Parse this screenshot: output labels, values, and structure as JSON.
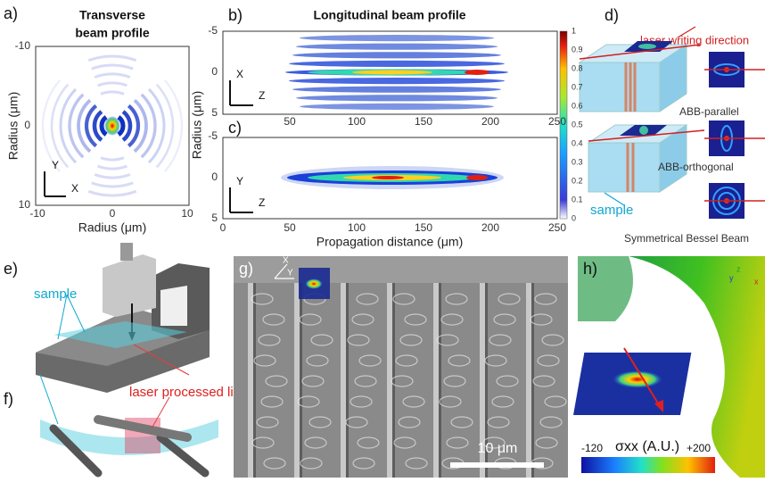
{
  "panels": {
    "a": {
      "label": "a)",
      "title": [
        "Transverse",
        "beam profile"
      ],
      "yticks": [
        -10,
        0,
        10
      ],
      "xticks": [
        -10,
        0,
        10
      ],
      "xlabel": "Radius (μm)",
      "ylabel": "Radius (μm)",
      "axes": [
        "Y",
        "X"
      ]
    },
    "b": {
      "label": "b)",
      "title": "Longitudinal beam profile",
      "yticks": [
        -5,
        0,
        5
      ],
      "xticks": [
        50,
        100,
        150,
        200,
        250
      ],
      "axes": [
        "X",
        "Z"
      ]
    },
    "c": {
      "label": "c)",
      "yticks": [
        -5,
        0,
        5
      ],
      "xticks": [
        0,
        50,
        100,
        150,
        200,
        250
      ],
      "axes": [
        "Y",
        "Z"
      ],
      "xlabel": "Propagation distance (μm)",
      "ylabel": "Radius (μm)"
    },
    "colorbar": {
      "ticks": [
        1,
        0.9,
        0.8,
        0.7,
        0.6,
        0.5,
        0.4,
        0.3,
        0.2,
        0.1,
        0
      ]
    },
    "d": {
      "label": "d)",
      "direction": "laser writing direction",
      "beams": [
        "ABB-parallel",
        "ABB-orthogonal",
        "Symmetrical Bessel Beam"
      ],
      "sample": "sample"
    },
    "e": {
      "label": "e)",
      "sample": "sample"
    },
    "f": {
      "label": "f)",
      "line": "laser processed line"
    },
    "g": {
      "label": "g)",
      "axes": [
        "X",
        "Y"
      ],
      "scale": "10 μm"
    },
    "h": {
      "label": "h)",
      "axes": [
        "z",
        "y",
        "x"
      ],
      "min": "-120",
      "quantity": "σxx (A.U.)",
      "max": "+200"
    }
  }
}
